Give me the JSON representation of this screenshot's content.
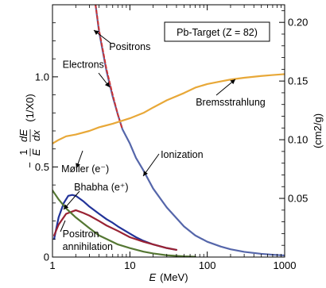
{
  "chart_data": {
    "type": "line",
    "title": "",
    "legend_box": "Pb-Target (Z = 82)",
    "x_axis": {
      "scale": "log",
      "range": [
        1,
        1000
      ],
      "tick_values": [
        1,
        10,
        100,
        1000
      ],
      "tick_labels": [
        "1",
        "10",
        "100",
        "1000"
      ],
      "label_var": "E",
      "label_unit": "(MeV)"
    },
    "y_left": {
      "range": [
        0,
        1.4
      ],
      "tick_values": [
        0,
        0.5,
        1.0
      ],
      "tick_labels": [
        "0",
        "0.5",
        "1.0"
      ],
      "label_prefix": "−",
      "label_frac_num": "1",
      "label_frac_den": "E",
      "label_frac2_num": "dE",
      "label_frac2_den": "dx",
      "label_unit": "(1/X0)"
    },
    "y_right": {
      "range": [
        0,
        0.215
      ],
      "tick_values": [
        0.05,
        0.1,
        0.15,
        0.2
      ],
      "tick_labels": [
        "0.05",
        "0.10",
        "0.15",
        "0.20"
      ],
      "label": "(cm2/g)"
    },
    "series": [
      {
        "key": "electrons",
        "color": "#5566aa",
        "dash": false,
        "x": [
          3.6,
          4.0,
          5.0,
          6.0,
          7.0,
          8.0,
          10,
          12,
          15,
          20,
          30,
          50,
          70,
          100,
          150,
          200,
          300,
          500,
          700,
          1000
        ],
        "y": [
          1.4,
          1.25,
          1.03,
          0.89,
          0.79,
          0.71,
          0.63,
          0.55,
          0.48,
          0.38,
          0.275,
          0.17,
          0.12,
          0.085,
          0.058,
          0.043,
          0.029,
          0.018,
          0.013,
          0.009
        ]
      },
      {
        "key": "positrons",
        "color": "#cc3333",
        "dash": true,
        "x": [
          3.6,
          4.0,
          5.0,
          6.0,
          7.0,
          8.0
        ],
        "y": [
          1.4,
          1.26,
          1.04,
          0.9,
          0.79,
          0.71
        ]
      },
      {
        "key": "bremsstrahlung",
        "color": "#e8a838",
        "dash": false,
        "x": [
          1.0,
          1.2,
          1.5,
          2.0,
          3.0,
          4.0,
          6.0,
          10,
          15,
          20,
          30,
          50,
          70,
          100,
          150,
          200,
          300,
          500,
          700,
          1000
        ],
        "y": [
          0.63,
          0.65,
          0.67,
          0.68,
          0.7,
          0.72,
          0.74,
          0.77,
          0.8,
          0.83,
          0.87,
          0.91,
          0.94,
          0.96,
          0.975,
          0.985,
          0.995,
          1.005,
          1.01,
          1.015
        ]
      },
      {
        "key": "moller",
        "color": "#223399",
        "dash": false,
        "x": [
          1.05,
          1.2,
          1.4,
          1.6,
          1.8,
          2.0,
          2.5,
          3.0,
          4.0,
          5.0,
          6.0,
          7.0,
          8.0,
          10,
          12,
          15,
          20,
          30,
          40
        ],
        "y": [
          0.1,
          0.22,
          0.3,
          0.34,
          0.345,
          0.34,
          0.31,
          0.28,
          0.24,
          0.21,
          0.19,
          0.17,
          0.155,
          0.13,
          0.11,
          0.09,
          0.07,
          0.05,
          0.04
        ]
      },
      {
        "key": "bhabha",
        "color": "#992233",
        "dash": false,
        "x": [
          1.05,
          1.2,
          1.5,
          2.0,
          2.5,
          3.0,
          4.0,
          5.0,
          7.0,
          10,
          15,
          20,
          30,
          40
        ],
        "y": [
          0.12,
          0.18,
          0.24,
          0.26,
          0.245,
          0.23,
          0.2,
          0.175,
          0.145,
          0.11,
          0.085,
          0.07,
          0.05,
          0.04
        ]
      },
      {
        "key": "annihilation",
        "color": "#557733",
        "dash": false,
        "x": [
          1.0,
          1.2,
          1.5,
          2.0,
          3.0,
          4.0,
          5.0,
          7.0,
          10,
          15,
          20,
          30,
          50,
          70
        ],
        "y": [
          0.37,
          0.32,
          0.27,
          0.22,
          0.16,
          0.12,
          0.1,
          0.07,
          0.05,
          0.03,
          0.02,
          0.01,
          0.004,
          0.002
        ]
      }
    ],
    "annotations": [
      {
        "key": "positrons",
        "text": "Positrons",
        "x": 5.4,
        "y": 1.15
      },
      {
        "key": "electrons",
        "text": "Electrons",
        "x": 1.35,
        "y": 1.05
      },
      {
        "key": "bremsstrahlung",
        "text": "Bremsstrahlung",
        "x": 200,
        "y": 0.84
      },
      {
        "key": "ionization",
        "text": "Ionization",
        "x": 25,
        "y": 0.55
      },
      {
        "key": "moller",
        "text": "Møller (e⁻)",
        "x": 1.3,
        "y": 0.47
      },
      {
        "key": "bhabha",
        "text": "Bhabha (e⁺)",
        "x": 1.9,
        "y": 0.37
      },
      {
        "key": "annihilation1",
        "text": "Positron",
        "x": 1.35,
        "y": 0.11
      },
      {
        "key": "annihilation2",
        "text": "annihilation",
        "x": 1.35,
        "y": 0.04
      }
    ]
  }
}
